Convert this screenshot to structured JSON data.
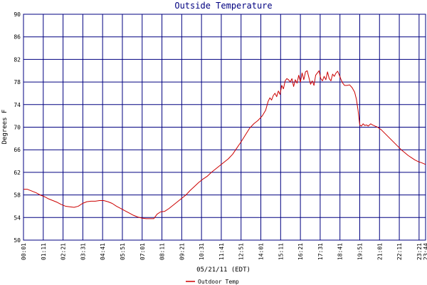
{
  "chart_data": {
    "type": "line",
    "title": "Outside Temperature",
    "xlabel": "05/21/11 (EDT)",
    "ylabel": "Degrees F",
    "ylim": [
      50,
      90
    ],
    "yticks": [
      50,
      54,
      58,
      62,
      66,
      70,
      74,
      78,
      82,
      86,
      90
    ],
    "xlim": [
      1.0167,
      23.8167
    ],
    "xticks": [
      {
        "label": "00:01",
        "x": 1.0167
      },
      {
        "label": "01:11",
        "x": 2.1833
      },
      {
        "label": "02:21",
        "x": 3.35
      },
      {
        "label": "03:31",
        "x": 4.5167
      },
      {
        "label": "04:41",
        "x": 5.6833
      },
      {
        "label": "05:51",
        "x": 6.85
      },
      {
        "label": "07:01",
        "x": 8.0167
      },
      {
        "label": "08:11",
        "x": 9.1833
      },
      {
        "label": "09:21",
        "x": 10.35
      },
      {
        "label": "10:31",
        "x": 11.5167
      },
      {
        "label": "11:41",
        "x": 12.6833
      },
      {
        "label": "12:51",
        "x": 13.85
      },
      {
        "label": "14:01",
        "x": 15.0167
      },
      {
        "label": "15:11",
        "x": 16.1833
      },
      {
        "label": "16:21",
        "x": 17.35
      },
      {
        "label": "17:31",
        "x": 18.5167
      },
      {
        "label": "18:41",
        "x": 19.6833
      },
      {
        "label": "19:51",
        "x": 20.85
      },
      {
        "label": "21:01",
        "x": 22.0167
      },
      {
        "label": "22:11",
        "x": 23.1833
      },
      {
        "label": "23:21",
        "x": 24.35
      },
      {
        "label": "23:44",
        "x": 24.7333
      }
    ],
    "grid": true,
    "legend_position": "bottom-left",
    "series": [
      {
        "name": "Outdoor Temp",
        "color": "#cc0000",
        "points": [
          [
            1.0167,
            59.0
          ],
          [
            1.25,
            59.0
          ],
          [
            1.5,
            58.7
          ],
          [
            1.75,
            58.4
          ],
          [
            2.0,
            58.0
          ],
          [
            2.25,
            57.7
          ],
          [
            2.5,
            57.3
          ],
          [
            2.75,
            57.0
          ],
          [
            3.0,
            56.7
          ],
          [
            3.25,
            56.3
          ],
          [
            3.5,
            56.0
          ],
          [
            3.75,
            55.9
          ],
          [
            4.0,
            55.8
          ],
          [
            4.25,
            56.0
          ],
          [
            4.5,
            56.5
          ],
          [
            4.75,
            56.8
          ],
          [
            5.0,
            56.9
          ],
          [
            5.25,
            56.9
          ],
          [
            5.5,
            57.0
          ],
          [
            5.75,
            57.0
          ],
          [
            6.0,
            56.8
          ],
          [
            6.25,
            56.5
          ],
          [
            6.5,
            56.0
          ],
          [
            6.75,
            55.6
          ],
          [
            7.0,
            55.2
          ],
          [
            7.25,
            54.8
          ],
          [
            7.5,
            54.4
          ],
          [
            7.75,
            54.1
          ],
          [
            8.0,
            53.9
          ],
          [
            8.25,
            53.8
          ],
          [
            8.5,
            53.8
          ],
          [
            8.7,
            53.8
          ],
          [
            8.9,
            54.6
          ],
          [
            9.1,
            55.0
          ],
          [
            9.35,
            55.1
          ],
          [
            9.6,
            55.6
          ],
          [
            9.85,
            56.2
          ],
          [
            10.1,
            56.8
          ],
          [
            10.35,
            57.4
          ],
          [
            10.6,
            58.0
          ],
          [
            10.85,
            58.8
          ],
          [
            11.1,
            59.5
          ],
          [
            11.35,
            60.2
          ],
          [
            11.6,
            60.8
          ],
          [
            11.85,
            61.3
          ],
          [
            12.1,
            62.0
          ],
          [
            12.35,
            62.6
          ],
          [
            12.6,
            63.2
          ],
          [
            12.85,
            63.8
          ],
          [
            13.1,
            64.4
          ],
          [
            13.35,
            65.2
          ],
          [
            13.6,
            66.3
          ],
          [
            13.85,
            67.4
          ],
          [
            14.1,
            68.6
          ],
          [
            14.35,
            69.8
          ],
          [
            14.6,
            70.6
          ],
          [
            14.85,
            71.2
          ],
          [
            15.1,
            72.0
          ],
          [
            15.3,
            73.0
          ],
          [
            15.45,
            74.6
          ],
          [
            15.55,
            75.2
          ],
          [
            15.65,
            74.8
          ],
          [
            15.75,
            75.6
          ],
          [
            15.85,
            76.0
          ],
          [
            15.95,
            75.4
          ],
          [
            16.05,
            76.4
          ],
          [
            16.15,
            75.8
          ],
          [
            16.25,
            77.4
          ],
          [
            16.35,
            76.8
          ],
          [
            16.45,
            78.2
          ],
          [
            16.55,
            78.6
          ],
          [
            16.65,
            78.4
          ],
          [
            16.75,
            78.0
          ],
          [
            16.85,
            78.6
          ],
          [
            16.95,
            77.2
          ],
          [
            17.05,
            78.4
          ],
          [
            17.15,
            77.8
          ],
          [
            17.25,
            79.2
          ],
          [
            17.35,
            78.0
          ],
          [
            17.45,
            79.6
          ],
          [
            17.55,
            78.4
          ],
          [
            17.65,
            79.8
          ],
          [
            17.75,
            80.0
          ],
          [
            17.85,
            78.8
          ],
          [
            17.95,
            77.6
          ],
          [
            18.05,
            78.2
          ],
          [
            18.15,
            77.4
          ],
          [
            18.25,
            79.2
          ],
          [
            18.35,
            79.6
          ],
          [
            18.45,
            80.0
          ],
          [
            18.55,
            78.6
          ],
          [
            18.65,
            78.2
          ],
          [
            18.75,
            79.0
          ],
          [
            18.85,
            78.4
          ],
          [
            18.95,
            79.8
          ],
          [
            19.05,
            78.6
          ],
          [
            19.15,
            78.2
          ],
          [
            19.25,
            79.4
          ],
          [
            19.35,
            79.0
          ],
          [
            19.45,
            79.6
          ],
          [
            19.55,
            79.9
          ],
          [
            19.65,
            79.2
          ],
          [
            19.75,
            78.4
          ],
          [
            19.85,
            77.8
          ],
          [
            19.95,
            77.4
          ],
          [
            20.1,
            77.4
          ],
          [
            20.25,
            77.5
          ],
          [
            20.4,
            77.0
          ],
          [
            20.55,
            76.2
          ],
          [
            20.65,
            75.0
          ],
          [
            20.75,
            73.0
          ],
          [
            20.85,
            70.4
          ],
          [
            20.95,
            70.2
          ],
          [
            21.05,
            70.6
          ],
          [
            21.15,
            70.3
          ],
          [
            21.25,
            70.4
          ],
          [
            21.35,
            70.2
          ],
          [
            21.5,
            70.6
          ],
          [
            21.6,
            70.4
          ],
          [
            21.75,
            70.2
          ],
          [
            21.9,
            70.0
          ],
          [
            22.1,
            69.6
          ],
          [
            22.3,
            69.0
          ],
          [
            22.5,
            68.4
          ],
          [
            22.7,
            67.8
          ],
          [
            22.9,
            67.2
          ],
          [
            23.1,
            66.6
          ],
          [
            23.3,
            66.0
          ],
          [
            23.5,
            65.5
          ],
          [
            23.7,
            65.0
          ],
          [
            23.9,
            64.6
          ],
          [
            24.1,
            64.2
          ],
          [
            24.3,
            63.9
          ],
          [
            24.5,
            63.7
          ],
          [
            24.7333,
            63.4
          ]
        ]
      }
    ]
  }
}
